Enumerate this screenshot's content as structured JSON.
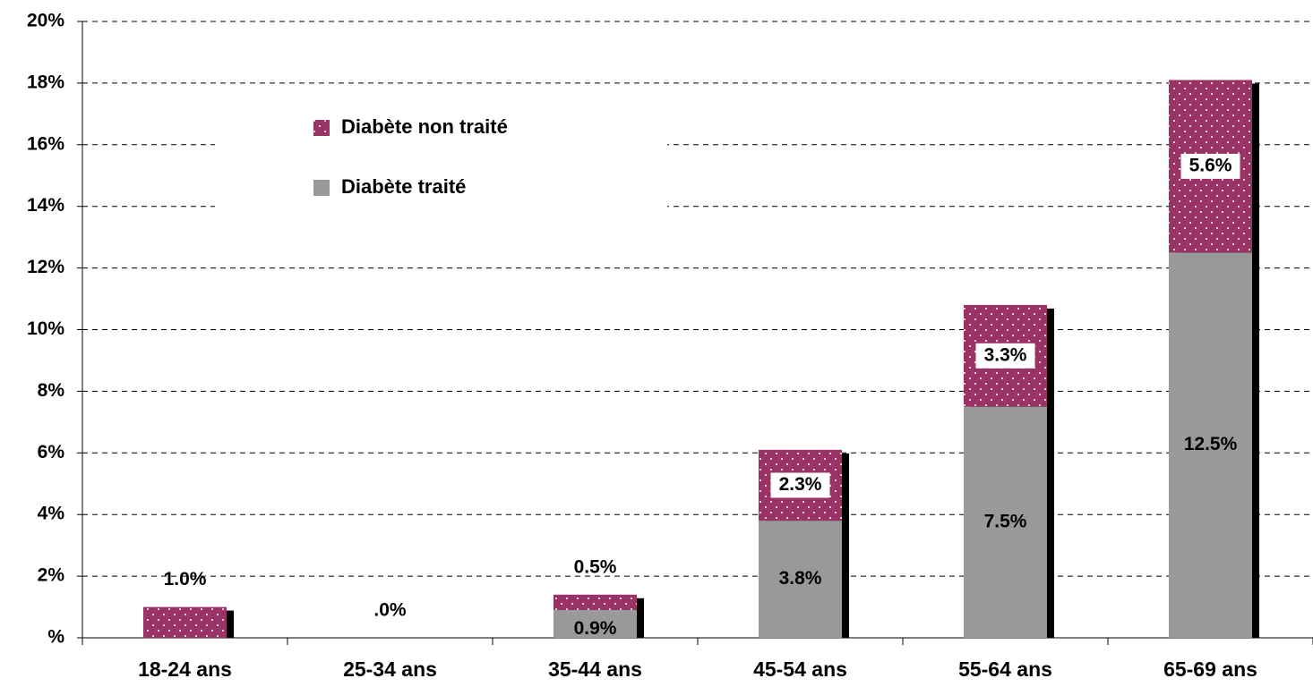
{
  "chart_data": {
    "type": "stacked_bar",
    "categories": [
      "18-24 ans",
      "25-34 ans",
      "35-44 ans",
      "45-54 ans",
      "55-64 ans",
      "65-69 ans"
    ],
    "series": [
      {
        "name": "Diabète traité",
        "color": "#999999",
        "values": [
          0,
          0,
          0.9,
          3.8,
          7.5,
          12.5
        ],
        "value_labels": [
          null,
          null,
          "0.9%",
          "3.8%",
          "7.5%",
          "12.5%"
        ]
      },
      {
        "name": "Diabète non traité",
        "color": "#993366",
        "values": [
          1.0,
          0,
          0.5,
          2.3,
          3.3,
          5.6
        ],
        "value_labels": [
          "1.0%",
          ".0%",
          "0.5%",
          "2.3%",
          "3.3%",
          "5.6%"
        ]
      }
    ],
    "ylim": [
      0,
      20
    ],
    "yticks": [
      {
        "value": 0,
        "label": "%"
      },
      {
        "value": 2,
        "label": "2%"
      },
      {
        "value": 4,
        "label": "4%"
      },
      {
        "value": 6,
        "label": "6%"
      },
      {
        "value": 8,
        "label": "8%"
      },
      {
        "value": 10,
        "label": "10%"
      },
      {
        "value": 12,
        "label": "12%"
      },
      {
        "value": 14,
        "label": "14%"
      },
      {
        "value": 16,
        "label": "16%"
      },
      {
        "value": 18,
        "label": "18%"
      },
      {
        "value": 20,
        "label": "20%"
      }
    ],
    "grid": true
  }
}
